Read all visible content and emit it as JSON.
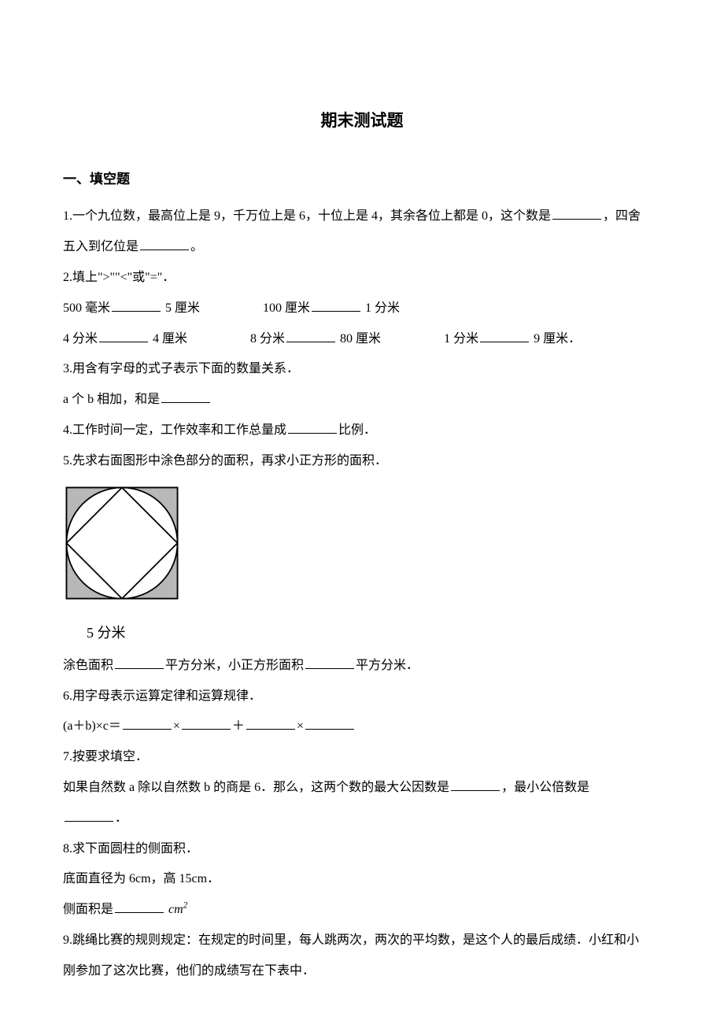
{
  "title": "期末测试题",
  "section1": {
    "heading": "一、填空题",
    "q1": {
      "prefix": "1.一个九位数，最高位上是 9，千万位上是 6，十位上是 4，其余各位上都是 0，这个数是",
      "mid": "，四舍",
      "line2a": "五入到亿位是",
      "line2b": "。"
    },
    "q2": {
      "line1": "2.填上\">\"\"<\"或\"=\"．",
      "a1": "500 毫米",
      "a2": " 5 厘米",
      "a3": "100 厘米",
      "a4": " 1 分米",
      "b1": "4 分米",
      "b2": " 4 厘米",
      "b3": "8 分米",
      "b4": " 80 厘米",
      "b5": "1 分米",
      "b6": " 9 厘米．"
    },
    "q3": {
      "line1": "3.用含有字母的式子表示下面的数量关系．",
      "line2": "a 个 b 相加，和是"
    },
    "q4": {
      "a": "4.工作时间一定，工作效率和工作总量成",
      "b": "比例．"
    },
    "q5": {
      "line1": "5.先求右面图形中涂色部分的面积，再求小正方形的面积．",
      "caption": "5 分米",
      "l2a": "涂色面积",
      "l2b": "平方分米，小正方形面积",
      "l2c": "平方分米．",
      "figure": {
        "size": 190,
        "square_fill": "#ffffff",
        "square_stroke": "#000000",
        "circle_stroke": "#000000",
        "diamond_stroke": "#000000",
        "shade_fill": "#b8b8b8"
      }
    },
    "q6": {
      "line1": "6.用字母表示运算定律和运算规律．",
      "l2a": "(a＋b)×c＝",
      "l2b": "×",
      "l2c": "＋",
      "l2d": "×"
    },
    "q7": {
      "line1": "7.按要求填空．",
      "l2a": "如果自然数 a 除以自然数 b 的商是 6．那么，这两个数的最大公因数是",
      "l2b": "，最小公倍数是",
      "l3": "．"
    },
    "q8": {
      "line1": "8.求下面圆柱的侧面积．",
      "line2": "底面直径为 6cm，高 15cm．",
      "l3a": "侧面积是",
      "l3b_unit": "cm",
      "l3b_sup": "2"
    },
    "q9": {
      "l1": "9.跳绳比赛的规则规定：在规定的时间里，每人跳两次，两次的平均数，是这个人的最后成绩．小红和小",
      "l2": "刚参加了这次比赛，他们的成绩写在下表中．"
    }
  }
}
